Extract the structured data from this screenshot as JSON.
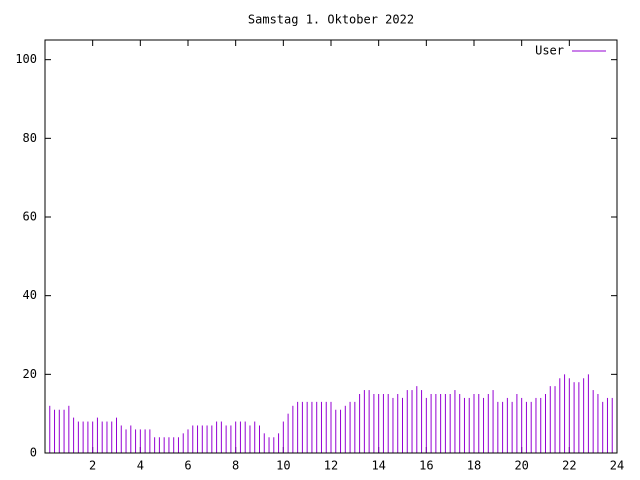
{
  "chart_data": {
    "type": "impulses",
    "title": "Samstag 1. Oktober 2022",
    "x": [
      0,
      0.2,
      0.4,
      0.6,
      0.8,
      1,
      1.2,
      1.4,
      1.6,
      1.8,
      2,
      2.2,
      2.4,
      2.6,
      2.8,
      3,
      3.2,
      3.4,
      3.6,
      3.8,
      4,
      4.2,
      4.4,
      4.6,
      4.8,
      5,
      5.2,
      5.4,
      5.6,
      5.8,
      6,
      6.2,
      6.4,
      6.6,
      6.8,
      7,
      7.2,
      7.4,
      7.6,
      7.8,
      8,
      8.2,
      8.4,
      8.6,
      8.8,
      9,
      9.2,
      9.4,
      9.6,
      9.8,
      10,
      10.2,
      10.4,
      10.6,
      10.8,
      11,
      11.2,
      11.4,
      11.6,
      11.8,
      12,
      12.2,
      12.4,
      12.6,
      12.8,
      13,
      13.2,
      13.4,
      13.6,
      13.8,
      14,
      14.2,
      14.4,
      14.6,
      14.8,
      15,
      15.2,
      15.4,
      15.6,
      15.8,
      16,
      16.2,
      16.4,
      16.6,
      16.8,
      17,
      17.2,
      17.4,
      17.6,
      17.8,
      18,
      18.2,
      18.4,
      18.6,
      18.8,
      19,
      19.2,
      19.4,
      19.6,
      19.8,
      20,
      20.2,
      20.4,
      20.6,
      20.8,
      21,
      21.2,
      21.4,
      21.6,
      21.8,
      22,
      22.2,
      22.4,
      22.6,
      22.8,
      23,
      23.2,
      23.4,
      23.6,
      23.8
    ],
    "series": [
      {
        "name": "User",
        "color": "#9400d3",
        "values": [
          13,
          12,
          11,
          11,
          11,
          12,
          9,
          8,
          8,
          8,
          8,
          9,
          8,
          8,
          8,
          9,
          7,
          6,
          7,
          6,
          6,
          6,
          6,
          4,
          4,
          4,
          4,
          4,
          4,
          5,
          6,
          7,
          7,
          7,
          7,
          7,
          8,
          8,
          7,
          7,
          8,
          8,
          8,
          7,
          8,
          7,
          5,
          4,
          4,
          5,
          8,
          10,
          12,
          13,
          13,
          13,
          13,
          13,
          13,
          13,
          13,
          11,
          11,
          12,
          13,
          13,
          15,
          16,
          16,
          15,
          15,
          15,
          15,
          14,
          15,
          14,
          16,
          16,
          17,
          16,
          14,
          15,
          15,
          15,
          15,
          15,
          16,
          15,
          14,
          14,
          15,
          15,
          14,
          15,
          16,
          13,
          13,
          14,
          13,
          15,
          14,
          13,
          13,
          14,
          14,
          15,
          17,
          17,
          19,
          20,
          19,
          18,
          18,
          19,
          20,
          16,
          15,
          13,
          14,
          14
        ]
      }
    ],
    "xlim": [
      0,
      24
    ],
    "xticks": [
      2,
      4,
      6,
      8,
      10,
      12,
      14,
      16,
      18,
      20,
      22,
      24
    ],
    "ylim": [
      0,
      105
    ],
    "yticks": [
      0,
      20,
      40,
      60,
      80,
      100
    ],
    "legend": "top-right"
  }
}
